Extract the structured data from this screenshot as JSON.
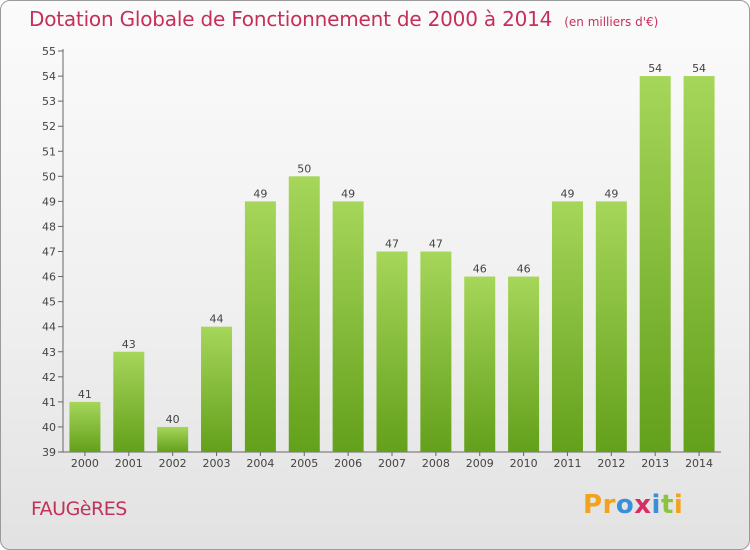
{
  "chart_data": {
    "type": "bar",
    "title": "Dotation Globale de Fonctionnement de 2000 à 2014",
    "unit_label": "(en milliers d'€)",
    "categories": [
      "2000",
      "2001",
      "2002",
      "2003",
      "2004",
      "2005",
      "2006",
      "2007",
      "2008",
      "2009",
      "2010",
      "2011",
      "2012",
      "2013",
      "2014"
    ],
    "values": [
      41,
      43,
      40,
      44,
      49,
      50,
      49,
      47,
      47,
      46,
      46,
      49,
      49,
      54,
      54
    ],
    "ylim": [
      39,
      55
    ],
    "yticks": [
      39,
      40,
      41,
      42,
      43,
      44,
      45,
      46,
      47,
      48,
      49,
      50,
      51,
      52,
      53,
      54,
      55
    ],
    "xlabel": "",
    "ylabel": "",
    "grid": false,
    "colors": {
      "bar_light": "#a6d65a",
      "bar_dark": "#63a01b",
      "title": "#c5305a",
      "axis": "#555555"
    }
  },
  "footer": {
    "commune": "FAUGèRES",
    "brand": "Proxiti"
  }
}
